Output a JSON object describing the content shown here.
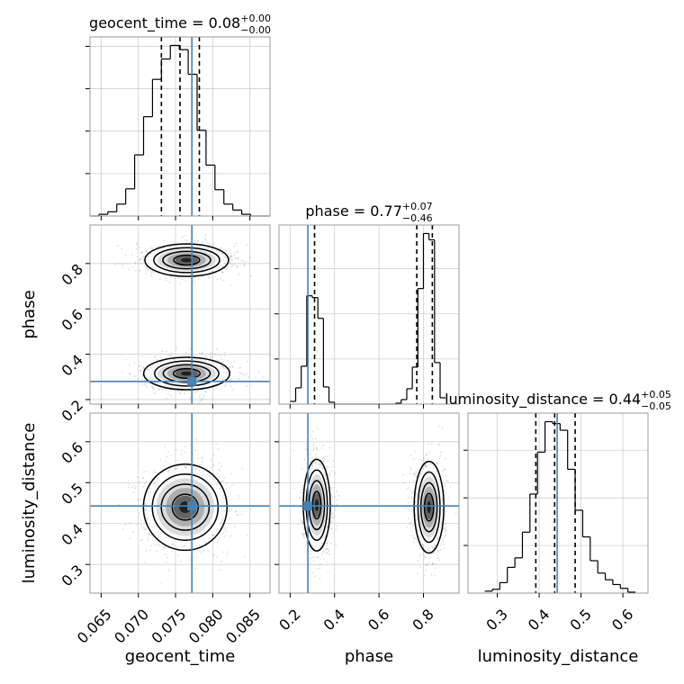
{
  "chart_data": {
    "type": "corner",
    "parameters": [
      "geocent_time",
      "phase",
      "luminosity_distance"
    ],
    "truths": {
      "geocent_time": 0.0772,
      "phase": 0.28,
      "luminosity_distance": 0.443
    },
    "truth_color": "#4682b4",
    "panels": {
      "geocent_time": {
        "title": {
          "name": "geocent_time",
          "value": "0.08",
          "plus": "+0.00",
          "minus": "−0.00"
        },
        "xlim": [
          0.0635,
          0.0877
        ],
        "ticks": [
          0.065,
          0.07,
          0.075,
          0.08,
          0.085
        ],
        "tick_labels": [
          "0.065",
          "0.070",
          "0.075",
          "0.080",
          "0.085"
        ],
        "quantiles": [
          0.0731,
          0.0756,
          0.0782
        ],
        "histogram": {
          "bin_edges": [
            0.0635,
            0.0647,
            0.0659,
            0.0671,
            0.0683,
            0.0695,
            0.0707,
            0.0719,
            0.0731,
            0.0743,
            0.0755,
            0.0767,
            0.0779,
            0.0791,
            0.0803,
            0.0815,
            0.0827,
            0.0839,
            0.0851,
            0.0863,
            0.0877
          ],
          "counts": [
            0,
            2,
            5,
            14,
            32,
            72,
            117,
            161,
            185,
            201,
            196,
            167,
            101,
            60,
            31,
            14,
            7,
            2,
            0,
            0
          ]
        }
      },
      "phase": {
        "title": {
          "name": "phase",
          "value": "0.77",
          "plus": "+0.07",
          "minus": "−0.46"
        },
        "xlim": [
          0.15,
          0.96
        ],
        "ylim": [
          0.18,
          0.97
        ],
        "ticks": [
          0.2,
          0.4,
          0.6,
          0.8
        ],
        "tick_labels": [
          "0.2",
          "0.4",
          "0.6",
          "0.8"
        ],
        "quantiles": [
          0.31,
          0.77,
          0.84
        ],
        "histogram": {
          "bin_edges": [
            0.2,
            0.225,
            0.25,
            0.275,
            0.3,
            0.325,
            0.35,
            0.375,
            0.4,
            0.425,
            0.45,
            0.475,
            0.5,
            0.525,
            0.55,
            0.575,
            0.6,
            0.625,
            0.65,
            0.675,
            0.7,
            0.725,
            0.75,
            0.775,
            0.8,
            0.825,
            0.85,
            0.875,
            0.9
          ],
          "counts": [
            3,
            18,
            42,
            120,
            118,
            95,
            19,
            2,
            0,
            0,
            0,
            0,
            0,
            0,
            0,
            0,
            0,
            0,
            0,
            1,
            5,
            17,
            41,
            128,
            189,
            182,
            46,
            7
          ]
        }
      },
      "luminosity_distance": {
        "title": {
          "name": "luminosity_distance",
          "value": "0.44",
          "plus": "+0.05",
          "minus": "−0.05"
        },
        "xlim": [
          0.23,
          0.66
        ],
        "ylim": [
          0.23,
          0.67
        ],
        "ticks": [
          0.3,
          0.4,
          0.5,
          0.6
        ],
        "tick_labels": [
          "0.3",
          "0.4",
          "0.5",
          "0.6"
        ],
        "quantiles": [
          0.392,
          0.437,
          0.486
        ],
        "histogram": {
          "bin_edges": [
            0.27,
            0.288,
            0.306,
            0.324,
            0.342,
            0.36,
            0.378,
            0.396,
            0.414,
            0.432,
            0.45,
            0.468,
            0.486,
            0.504,
            0.522,
            0.54,
            0.558,
            0.576,
            0.594,
            0.612,
            0.63
          ],
          "counts": [
            2,
            4,
            11,
            27,
            37,
            64,
            104,
            148,
            180,
            178,
            171,
            130,
            87,
            59,
            34,
            21,
            14,
            9,
            5,
            1
          ]
        }
      }
    },
    "y_axes": {
      "phase": {
        "label": "phase",
        "ticks": [
          0.2,
          0.4,
          0.6,
          0.8
        ],
        "tick_labels": [
          "0.2",
          "0.4",
          "0.6",
          "0.8"
        ]
      },
      "luminosity_distance": {
        "label": "luminosity_distance",
        "ticks": [
          0.3,
          0.4,
          0.5,
          0.6
        ],
        "tick_labels": [
          "0.3",
          "0.4",
          "0.5",
          "0.6"
        ]
      }
    },
    "x_axis_labels": [
      "geocent_time",
      "phase",
      "luminosity_distance"
    ],
    "contour_levels_sigma": [
      0.5,
      1.0,
      1.5,
      2.0
    ],
    "modes_2d": {
      "geocent_time-phase": [
        {
          "cx": 0.0765,
          "cy": 0.815,
          "sx": 0.0026,
          "sy": 0.032
        },
        {
          "cx": 0.0765,
          "cy": 0.315,
          "sx": 0.0026,
          "sy": 0.032
        }
      ],
      "geocent_time-luminosity_distance": [
        {
          "cx": 0.0763,
          "cy": 0.44,
          "sx": 0.0026,
          "sy": 0.047
        }
      ],
      "phase-luminosity_distance": [
        {
          "cx": 0.32,
          "cy": 0.445,
          "sx": 0.028,
          "sy": 0.05
        },
        {
          "cx": 0.825,
          "cy": 0.44,
          "sx": 0.03,
          "sy": 0.05
        }
      ]
    },
    "grid": true
  }
}
